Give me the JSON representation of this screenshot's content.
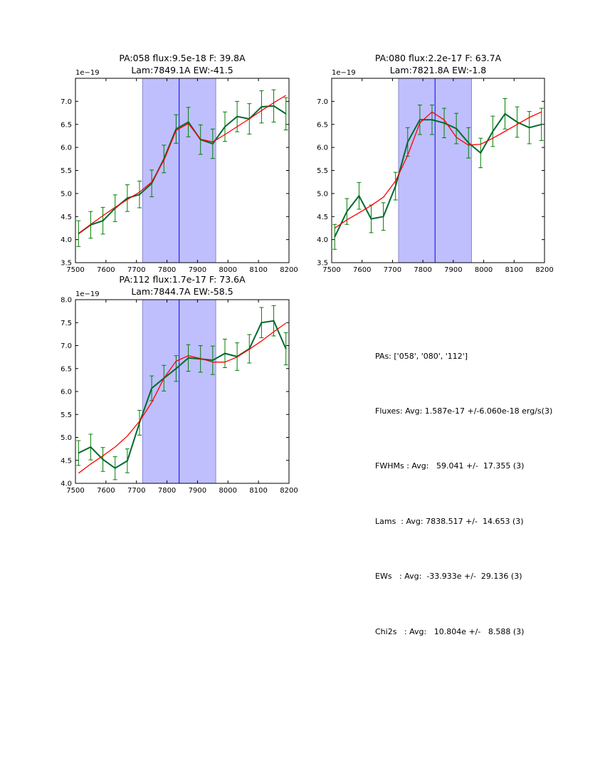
{
  "chart_data": [
    {
      "type": "line",
      "title_line1": "PA:058 flux:9.5e-18 F: 39.8A",
      "title_line2": "Lam:7849.1A EW:-41.5",
      "offset_label": "1e−19",
      "xlim": [
        7500,
        8200
      ],
      "ylim": [
        3.5,
        7.5
      ],
      "xticks": [
        "7500",
        "7600",
        "7700",
        "7800",
        "7900",
        "8000",
        "8100",
        "8200"
      ],
      "yticks": [
        "3.5",
        "4.0",
        "4.5",
        "5.0",
        "5.5",
        "6.0",
        "6.5",
        "7.0"
      ],
      "shade": [
        7720,
        7960
      ],
      "center_line": 7840,
      "x": [
        7510,
        7550,
        7590,
        7630,
        7670,
        7710,
        7750,
        7790,
        7830,
        7870,
        7910,
        7950,
        7990,
        8030,
        8070,
        8110,
        8150,
        8190
      ],
      "series": [
        {
          "name": "data",
          "color": "#006a2e",
          "values": [
            4.13,
            4.32,
            4.41,
            4.68,
            4.9,
            4.98,
            5.22,
            5.75,
            6.4,
            6.55,
            6.17,
            6.08,
            6.45,
            6.67,
            6.62,
            6.88,
            6.9,
            6.73
          ],
          "errors": [
            0.28,
            0.29,
            0.29,
            0.29,
            0.29,
            0.29,
            0.29,
            0.3,
            0.31,
            0.32,
            0.32,
            0.32,
            0.32,
            0.33,
            0.33,
            0.35,
            0.35,
            0.35
          ]
        },
        {
          "name": "fit",
          "color": "#ff0000",
          "values": [
            4.13,
            4.33,
            4.52,
            4.7,
            4.87,
            5.03,
            5.25,
            5.72,
            6.37,
            6.52,
            6.18,
            6.12,
            6.28,
            6.45,
            6.62,
            6.8,
            6.97,
            7.13
          ]
        }
      ]
    },
    {
      "type": "line",
      "title_line1": "PA:080 flux:2.2e-17 F: 63.7A",
      "title_line2": "Lam:7821.8A EW:-1.8",
      "offset_label": "1e−19",
      "xlim": [
        7500,
        8200
      ],
      "ylim": [
        3.5,
        7.5
      ],
      "xticks": [
        "7500",
        "7600",
        "7700",
        "7800",
        "7900",
        "8000",
        "8100",
        "8200"
      ],
      "yticks": [
        "3.5",
        "4.0",
        "4.5",
        "5.0",
        "5.5",
        "6.0",
        "6.5",
        "7.0"
      ],
      "shade": [
        7720,
        7960
      ],
      "center_line": 7840,
      "x": [
        7510,
        7550,
        7590,
        7630,
        7670,
        7710,
        7750,
        7790,
        7830,
        7870,
        7910,
        7950,
        7990,
        8030,
        8070,
        8110,
        8150,
        8190
      ],
      "series": [
        {
          "name": "data",
          "color": "#006a2e",
          "values": [
            4.06,
            4.61,
            4.95,
            4.45,
            4.5,
            5.16,
            6.12,
            6.6,
            6.6,
            6.53,
            6.41,
            6.1,
            5.88,
            6.35,
            6.73,
            6.55,
            6.43,
            6.5
          ],
          "errors": [
            0.27,
            0.28,
            0.29,
            0.3,
            0.3,
            0.3,
            0.31,
            0.32,
            0.32,
            0.32,
            0.33,
            0.33,
            0.32,
            0.33,
            0.33,
            0.33,
            0.35,
            0.35
          ]
        },
        {
          "name": "fit",
          "color": "#ff0000",
          "values": [
            4.25,
            4.43,
            4.58,
            4.74,
            4.92,
            5.27,
            5.83,
            6.53,
            6.77,
            6.6,
            6.22,
            6.05,
            6.07,
            6.2,
            6.35,
            6.5,
            6.65,
            6.77
          ]
        }
      ]
    },
    {
      "type": "line",
      "title_line1": "PA:112 flux:1.7e-17 F: 73.6A",
      "title_line2": "Lam:7844.7A EW:-58.5",
      "offset_label": "1e−19",
      "xlim": [
        7500,
        8200
      ],
      "ylim": [
        4.0,
        8.0
      ],
      "xticks": [
        "7500",
        "7600",
        "7700",
        "7800",
        "7900",
        "8000",
        "8100",
        "8200"
      ],
      "yticks": [
        "4.0",
        "4.5",
        "5.0",
        "5.5",
        "6.0",
        "6.5",
        "7.0",
        "7.5",
        "8.0"
      ],
      "shade": [
        7720,
        7960
      ],
      "center_line": 7840,
      "x": [
        7510,
        7550,
        7590,
        7630,
        7670,
        7710,
        7750,
        7790,
        7830,
        7870,
        7910,
        7950,
        7990,
        8030,
        8070,
        8110,
        8150,
        8190
      ],
      "series": [
        {
          "name": "data",
          "color": "#006a2e",
          "values": [
            4.66,
            4.79,
            4.52,
            4.33,
            4.49,
            5.32,
            6.07,
            6.29,
            6.5,
            6.73,
            6.71,
            6.68,
            6.83,
            6.76,
            6.93,
            7.5,
            7.54,
            6.93
          ],
          "errors": [
            0.27,
            0.28,
            0.26,
            0.25,
            0.26,
            0.27,
            0.27,
            0.28,
            0.28,
            0.29,
            0.29,
            0.31,
            0.31,
            0.3,
            0.31,
            0.33,
            0.33,
            0.35
          ]
        },
        {
          "name": "fit",
          "color": "#ff0000",
          "values": [
            4.22,
            4.42,
            4.6,
            4.79,
            5.03,
            5.35,
            5.76,
            6.29,
            6.66,
            6.78,
            6.72,
            6.64,
            6.64,
            6.75,
            6.92,
            7.1,
            7.3,
            7.49
          ]
        }
      ]
    }
  ],
  "summary": [
    "PAs: ['058', '080', '112']",
    "Fluxes: Avg: 1.587e-17 +/-6.060e-18 erg/s(3)",
    "FWHMs : Avg:   59.041 +/-  17.355 (3)",
    "Lams  : Avg: 7838.517 +/-  14.653 (3)",
    "EWs   : Avg:  -33.933e +/-  29.136 (3)",
    "Chi2s   : Avg:   10.804e +/-   8.588 (3)"
  ]
}
